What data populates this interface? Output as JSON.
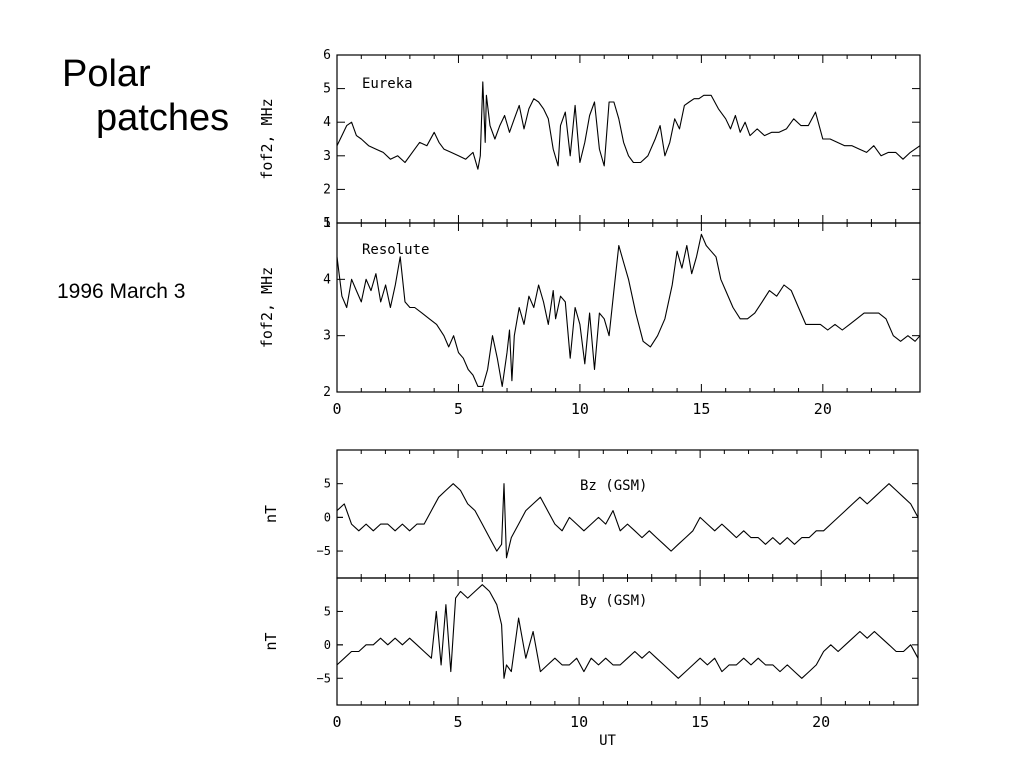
{
  "slide": {
    "title_line1": "Polar",
    "title_line2": "patches",
    "date": "1996 March 3"
  },
  "chart_data": [
    {
      "type": "line",
      "panel": "eureka",
      "annotation": "Eureka",
      "ylabel": "fof2, MHz",
      "xlabel": "",
      "xlim": [
        0,
        24
      ],
      "ylim": [
        1,
        6
      ],
      "yticks": [
        1,
        2,
        3,
        4,
        5,
        6
      ],
      "xticks": [],
      "series": [
        {
          "x": [
            0,
            0.2,
            0.4,
            0.6,
            0.8,
            1.0,
            1.3,
            1.6,
            1.9,
            2.2,
            2.5,
            2.8,
            3.1,
            3.4,
            3.7,
            4.0,
            4.2,
            4.4,
            4.7,
            5.0,
            5.3,
            5.6,
            5.8,
            5.9,
            6.0,
            6.05,
            6.1,
            6.15,
            6.3,
            6.5,
            6.7,
            6.9,
            7.1,
            7.3,
            7.5,
            7.7,
            7.9,
            8.1,
            8.3,
            8.5,
            8.7,
            8.9,
            9.1,
            9.2,
            9.4,
            9.6,
            9.8,
            10.0,
            10.2,
            10.4,
            10.6,
            10.8,
            11.0,
            11.2,
            11.4,
            11.6,
            11.8,
            12.0,
            12.2,
            12.5,
            12.8,
            13.1,
            13.3,
            13.5,
            13.7,
            13.9,
            14.1,
            14.3,
            14.5,
            14.7,
            14.9,
            15.1,
            15.4,
            15.7,
            16.0,
            16.2,
            16.4,
            16.6,
            16.8,
            17.0,
            17.3,
            17.6,
            17.9,
            18.2,
            18.5,
            18.8,
            19.1,
            19.4,
            19.7,
            20.0,
            20.3,
            20.6,
            20.9,
            21.2,
            21.5,
            21.8,
            22.1,
            22.4,
            22.7,
            23.0,
            23.3,
            23.6,
            24.0
          ],
          "y": [
            3.3,
            3.6,
            3.9,
            4.0,
            3.6,
            3.5,
            3.3,
            3.2,
            3.1,
            2.9,
            3.0,
            2.8,
            3.1,
            3.4,
            3.3,
            3.7,
            3.4,
            3.2,
            3.1,
            3.0,
            2.9,
            3.1,
            2.6,
            3.0,
            5.2,
            4.3,
            3.4,
            4.8,
            3.9,
            3.5,
            3.9,
            4.2,
            3.7,
            4.1,
            4.5,
            3.8,
            4.4,
            4.7,
            4.6,
            4.4,
            4.1,
            3.2,
            2.7,
            3.9,
            4.3,
            3.0,
            4.5,
            2.8,
            3.4,
            4.2,
            4.6,
            3.2,
            2.7,
            4.6,
            4.6,
            4.1,
            3.4,
            3.0,
            2.8,
            2.8,
            3.0,
            3.5,
            3.9,
            3.0,
            3.4,
            4.1,
            3.8,
            4.5,
            4.6,
            4.7,
            4.7,
            4.8,
            4.8,
            4.4,
            4.1,
            3.8,
            4.2,
            3.7,
            4.0,
            3.6,
            3.8,
            3.6,
            3.7,
            3.7,
            3.8,
            4.1,
            3.9,
            3.9,
            4.3,
            3.5,
            3.5,
            3.4,
            3.3,
            3.3,
            3.2,
            3.1,
            3.3,
            3.0,
            3.1,
            3.1,
            2.9,
            3.1,
            3.3
          ]
        }
      ]
    },
    {
      "type": "line",
      "panel": "resolute",
      "annotation": "Resolute",
      "ylabel": "fof2, MHz",
      "xlabel": "",
      "xlim": [
        0,
        24
      ],
      "ylim": [
        2,
        5
      ],
      "yticks": [
        2,
        3,
        4,
        5
      ],
      "xticks": [
        0,
        5,
        10,
        15,
        20
      ],
      "series": [
        {
          "x": [
            0,
            0.2,
            0.4,
            0.6,
            0.8,
            1.0,
            1.2,
            1.4,
            1.6,
            1.8,
            2.0,
            2.2,
            2.4,
            2.6,
            2.8,
            3.0,
            3.2,
            3.5,
            3.8,
            4.1,
            4.4,
            4.6,
            4.8,
            5.0,
            5.2,
            5.4,
            5.6,
            5.8,
            6.0,
            6.2,
            6.4,
            6.6,
            6.8,
            7.0,
            7.1,
            7.2,
            7.3,
            7.5,
            7.7,
            7.9,
            8.1,
            8.3,
            8.5,
            8.7,
            8.9,
            9.0,
            9.2,
            9.4,
            9.6,
            9.8,
            10.0,
            10.2,
            10.4,
            10.6,
            10.8,
            11.0,
            11.2,
            11.4,
            11.6,
            11.8,
            12.0,
            12.3,
            12.6,
            12.9,
            13.2,
            13.5,
            13.8,
            14.0,
            14.2,
            14.4,
            14.6,
            14.8,
            15.0,
            15.2,
            15.4,
            15.6,
            15.8,
            16.0,
            16.3,
            16.6,
            16.9,
            17.2,
            17.5,
            17.8,
            18.1,
            18.4,
            18.7,
            19.0,
            19.3,
            19.6,
            19.9,
            20.2,
            20.5,
            20.8,
            21.1,
            21.4,
            21.7,
            22.0,
            22.3,
            22.6,
            22.9,
            23.2,
            23.5,
            23.8,
            24.0
          ],
          "y": [
            4.4,
            3.7,
            3.5,
            4.0,
            3.8,
            3.6,
            4.0,
            3.8,
            4.1,
            3.6,
            3.9,
            3.5,
            3.9,
            4.4,
            3.6,
            3.5,
            3.5,
            3.4,
            3.3,
            3.2,
            3.0,
            2.8,
            3.0,
            2.7,
            2.6,
            2.4,
            2.3,
            2.1,
            2.1,
            2.4,
            3.0,
            2.6,
            2.1,
            2.7,
            3.1,
            2.2,
            3.0,
            3.5,
            3.2,
            3.7,
            3.5,
            3.9,
            3.6,
            3.2,
            3.8,
            3.3,
            3.7,
            3.6,
            2.6,
            3.5,
            3.2,
            2.5,
            3.4,
            2.4,
            3.4,
            3.3,
            3.0,
            3.8,
            4.6,
            4.3,
            4.0,
            3.4,
            2.9,
            2.8,
            3.0,
            3.3,
            3.9,
            4.5,
            4.2,
            4.6,
            4.1,
            4.4,
            4.8,
            4.6,
            4.5,
            4.4,
            4.0,
            3.8,
            3.5,
            3.3,
            3.3,
            3.4,
            3.6,
            3.8,
            3.7,
            3.9,
            3.8,
            3.5,
            3.2,
            3.2,
            3.2,
            3.1,
            3.2,
            3.1,
            3.2,
            3.3,
            3.4,
            3.4,
            3.4,
            3.3,
            3.0,
            2.9,
            3.0,
            2.9,
            3.0
          ]
        }
      ]
    },
    {
      "type": "line",
      "panel": "bz",
      "annotation": "Bz (GSM)",
      "ylabel": "nT",
      "xlabel": "",
      "xlim": [
        0,
        24
      ],
      "ylim": [
        -9,
        10
      ],
      "yticks": [
        -5,
        0,
        5
      ],
      "xticks": [],
      "series": [
        {
          "x": [
            0,
            0.3,
            0.6,
            0.9,
            1.2,
            1.5,
            1.8,
            2.1,
            2.4,
            2.7,
            3.0,
            3.3,
            3.6,
            3.9,
            4.2,
            4.5,
            4.8,
            5.1,
            5.4,
            5.7,
            6.0,
            6.3,
            6.6,
            6.8,
            6.9,
            7.0,
            7.2,
            7.5,
            7.8,
            8.1,
            8.4,
            8.7,
            9.0,
            9.3,
            9.6,
            9.9,
            10.2,
            10.5,
            10.8,
            11.1,
            11.4,
            11.7,
            12.0,
            12.3,
            12.6,
            12.9,
            13.2,
            13.5,
            13.8,
            14.1,
            14.4,
            14.7,
            15.0,
            15.3,
            15.6,
            15.9,
            16.2,
            16.5,
            16.8,
            17.1,
            17.4,
            17.7,
            18.0,
            18.3,
            18.6,
            18.9,
            19.2,
            19.5,
            19.8,
            20.1,
            20.4,
            20.7,
            21.0,
            21.3,
            21.6,
            21.9,
            22.2,
            22.5,
            22.8,
            23.1,
            23.4,
            23.7,
            24.0
          ],
          "y": [
            1,
            2,
            -1,
            -2,
            -1,
            -2,
            -1,
            -1,
            -2,
            -1,
            -2,
            -1,
            -1,
            1,
            3,
            4,
            5,
            4,
            2,
            1,
            -1,
            -3,
            -5,
            -4,
            5,
            -6,
            -3,
            -1,
            1,
            2,
            3,
            1,
            -1,
            -2,
            0,
            -1,
            -2,
            -1,
            0,
            -1,
            1,
            -2,
            -1,
            -2,
            -3,
            -2,
            -3,
            -4,
            -5,
            -4,
            -3,
            -2,
            0,
            -1,
            -2,
            -1,
            -2,
            -3,
            -2,
            -3,
            -3,
            -4,
            -3,
            -4,
            -3,
            -4,
            -3,
            -3,
            -2,
            -2,
            -1,
            0,
            1,
            2,
            3,
            2,
            3,
            4,
            5,
            4,
            3,
            2,
            0
          ]
        }
      ]
    },
    {
      "type": "line",
      "panel": "by",
      "annotation": "By (GSM)",
      "ylabel": "nT",
      "xlabel": "UT",
      "xlim": [
        0,
        24
      ],
      "ylim": [
        -9,
        10
      ],
      "yticks": [
        -5,
        0,
        5
      ],
      "xticks": [
        0,
        5,
        10,
        15,
        20
      ],
      "series": [
        {
          "x": [
            0,
            0.3,
            0.6,
            0.9,
            1.2,
            1.5,
            1.8,
            2.1,
            2.4,
            2.7,
            3.0,
            3.3,
            3.6,
            3.9,
            4.1,
            4.3,
            4.5,
            4.7,
            4.9,
            5.1,
            5.4,
            5.7,
            6.0,
            6.3,
            6.6,
            6.8,
            6.9,
            7.0,
            7.2,
            7.5,
            7.8,
            8.1,
            8.4,
            8.7,
            9.0,
            9.3,
            9.6,
            9.9,
            10.2,
            10.5,
            10.8,
            11.1,
            11.4,
            11.7,
            12.0,
            12.3,
            12.6,
            12.9,
            13.2,
            13.5,
            13.8,
            14.1,
            14.4,
            14.7,
            15.0,
            15.3,
            15.6,
            15.9,
            16.2,
            16.5,
            16.8,
            17.1,
            17.4,
            17.7,
            18.0,
            18.3,
            18.6,
            18.9,
            19.2,
            19.5,
            19.8,
            20.1,
            20.4,
            20.7,
            21.0,
            21.3,
            21.6,
            21.9,
            22.2,
            22.5,
            22.8,
            23.1,
            23.4,
            23.7,
            24.0
          ],
          "y": [
            -3,
            -2,
            -1,
            -1,
            0,
            0,
            1,
            0,
            1,
            0,
            1,
            0,
            -1,
            -2,
            5,
            -3,
            6,
            -4,
            7,
            8,
            7,
            8,
            9,
            8,
            6,
            3,
            -5,
            -3,
            -4,
            4,
            -2,
            2,
            -4,
            -3,
            -2,
            -3,
            -3,
            -2,
            -4,
            -2,
            -3,
            -2,
            -3,
            -3,
            -2,
            -1,
            -2,
            -1,
            -2,
            -3,
            -4,
            -5,
            -4,
            -3,
            -2,
            -3,
            -2,
            -4,
            -3,
            -3,
            -2,
            -3,
            -2,
            -3,
            -3,
            -4,
            -3,
            -4,
            -5,
            -4,
            -3,
            -1,
            0,
            -1,
            0,
            1,
            2,
            1,
            2,
            1,
            0,
            -1,
            -1,
            0,
            -2
          ]
        }
      ]
    }
  ]
}
